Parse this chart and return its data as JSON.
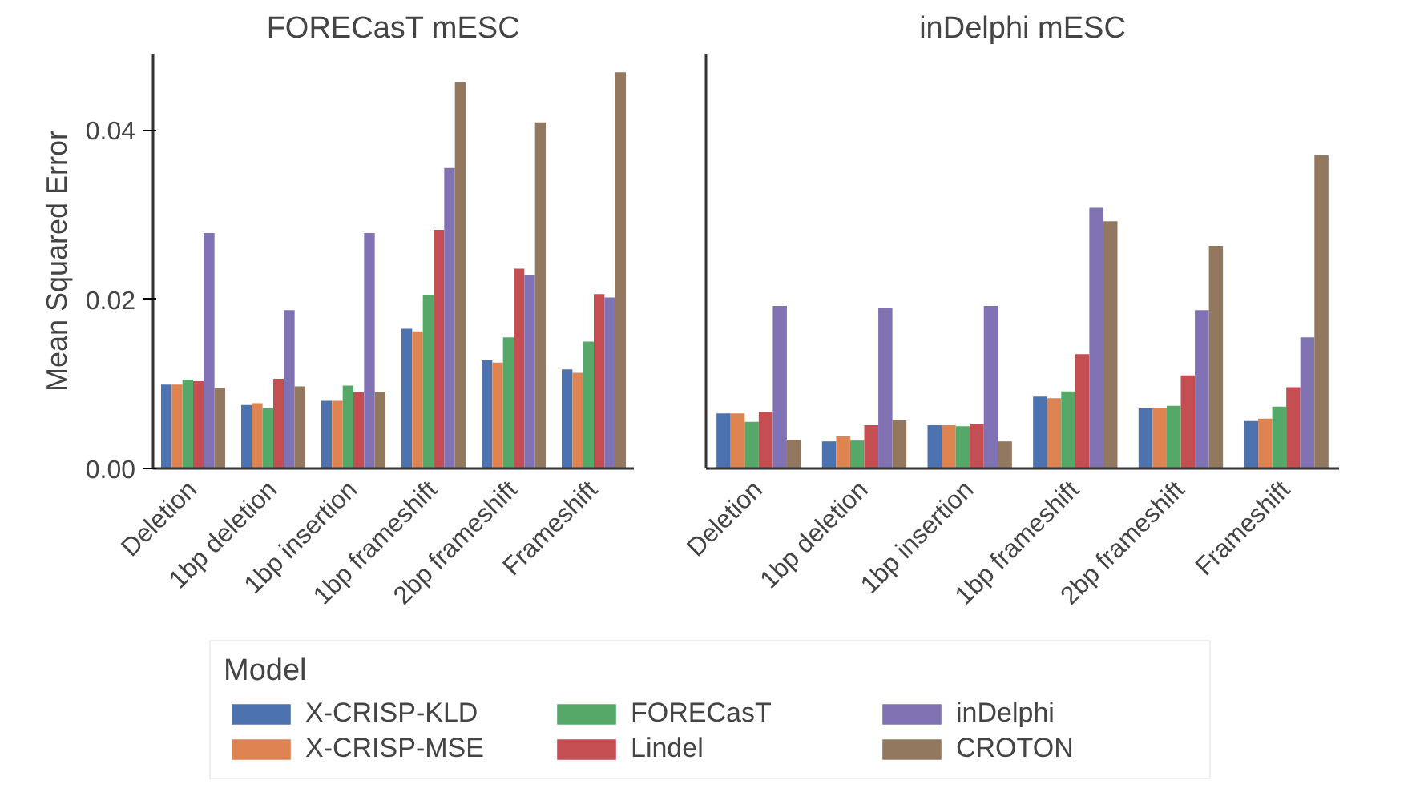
{
  "chart_data": [
    {
      "type": "bar",
      "title": "FORECasT mESC",
      "ylabel": "Mean Squared Error",
      "categories": [
        "Deletion",
        "1bp deletion",
        "1bp insertion",
        "1bp frameshift",
        "2bp frameshift",
        "Frameshift"
      ],
      "ylim": [
        0,
        0.049
      ],
      "yticks": [
        {
          "value": 0,
          "label": "0.00"
        },
        {
          "value": 0.02,
          "label": "0.02"
        },
        {
          "value": 0.04,
          "label": "0.04"
        }
      ],
      "legend": "bottom",
      "legend_title": "Model",
      "series": [
        {
          "name": "X-CRISP-KLD",
          "color": "#4c72b0",
          "values": [
            0.0099,
            0.0075,
            0.008,
            0.0165,
            0.0128,
            0.0117
          ]
        },
        {
          "name": "X-CRISP-MSE",
          "color": "#dd8452",
          "values": [
            0.0099,
            0.0077,
            0.008,
            0.0162,
            0.0125,
            0.0113
          ]
        },
        {
          "name": "FORECasT",
          "color": "#55a868",
          "values": [
            0.0105,
            0.0071,
            0.0098,
            0.0205,
            0.0155,
            0.015
          ]
        },
        {
          "name": "Lindel",
          "color": "#c44e52",
          "values": [
            0.0103,
            0.0106,
            0.009,
            0.0282,
            0.0236,
            0.0206
          ]
        },
        {
          "name": "inDelphi",
          "color": "#8172b3",
          "values": [
            0.0278,
            0.0187,
            0.0278,
            0.0355,
            0.0228,
            0.0202
          ]
        },
        {
          "name": "CROTON",
          "color": "#937860",
          "values": [
            0.0095,
            0.0097,
            0.009,
            0.0456,
            0.0409,
            0.0468
          ]
        }
      ]
    },
    {
      "type": "bar",
      "title": "inDelphi mESC",
      "categories": [
        "Deletion",
        "1bp deletion",
        "1bp insertion",
        "1bp frameshift",
        "2bp frameshift",
        "Frameshift"
      ],
      "ylim": [
        0,
        0.049
      ],
      "tick_labels": "x",
      "series": [
        {
          "color": "#4c72b0",
          "values": [
            0.0065,
            0.0032,
            0.0051,
            0.0085,
            0.0071,
            0.0056
          ]
        },
        {
          "color": "#dd8452",
          "values": [
            0.0065,
            0.0038,
            0.0051,
            0.0083,
            0.0071,
            0.0059
          ]
        },
        {
          "color": "#55a868",
          "values": [
            0.0055,
            0.0033,
            0.005,
            0.0091,
            0.0074,
            0.0073
          ]
        },
        {
          "color": "#c44e52",
          "values": [
            0.0067,
            0.0051,
            0.0052,
            0.0135,
            0.011,
            0.0096
          ]
        },
        {
          "color": "#8172b3",
          "values": [
            0.0192,
            0.019,
            0.0192,
            0.0308,
            0.0187,
            0.0155
          ]
        },
        {
          "color": "#937860",
          "values": [
            0.0034,
            0.0057,
            0.0032,
            0.0292,
            0.0263,
            0.037
          ]
        }
      ]
    }
  ]
}
